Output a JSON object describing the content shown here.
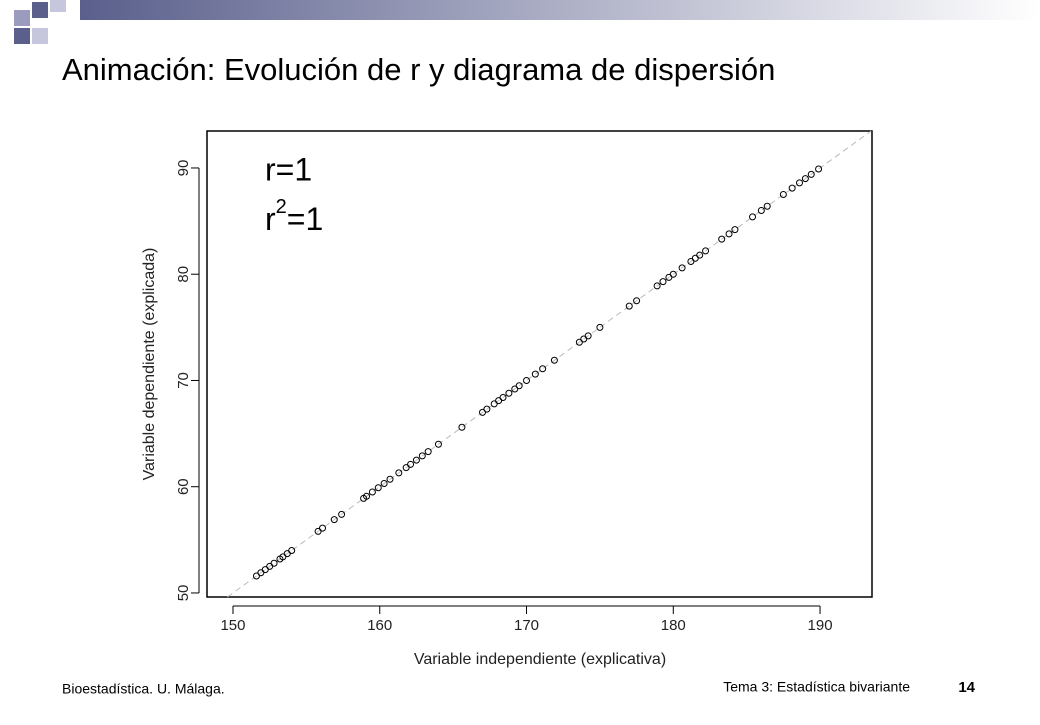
{
  "header": {
    "title": "Animación: Evolución de r y diagrama de dispersión"
  },
  "chart_data": {
    "type": "scatter",
    "xlabel": "Variable independiente (explicativa)",
    "ylabel": "Variable dependiente (explicada)",
    "annotations": [
      {
        "text": "r=1"
      },
      {
        "text": "r",
        "sup": "2",
        "after": "=1"
      }
    ],
    "reference_line": {
      "slope": 1,
      "intercept": -100
    },
    "xlim": [
      148.23,
      193.54
    ],
    "ylim": [
      49.62,
      93.48
    ],
    "xticks": [
      150,
      160,
      170,
      180,
      190
    ],
    "yticks": [
      50,
      60,
      70,
      80,
      90
    ],
    "color": "#000000",
    "x": [
      151.6,
      151.9,
      152.2,
      152.5,
      152.8,
      153.2,
      153.4,
      153.7,
      154.0,
      155.8,
      156.1,
      156.9,
      157.4,
      158.9,
      159.1,
      159.5,
      159.9,
      160.3,
      160.7,
      161.3,
      161.8,
      162.1,
      162.5,
      162.9,
      163.3,
      164.0,
      165.6,
      167.0,
      167.3,
      167.8,
      168.1,
      168.4,
      168.8,
      169.2,
      169.5,
      170.0,
      170.6,
      171.1,
      171.9,
      173.6,
      173.9,
      174.2,
      175.0,
      177.0,
      177.5,
      178.9,
      179.3,
      179.7,
      180.0,
      180.6,
      181.2,
      181.5,
      181.8,
      182.2,
      183.3,
      183.8,
      184.2,
      185.4,
      186.0,
      186.4,
      187.5,
      188.1,
      188.6,
      189.0,
      189.4,
      189.9
    ],
    "values": [
      51.6,
      51.9,
      52.2,
      52.5,
      52.8,
      53.2,
      53.4,
      53.7,
      54.0,
      55.8,
      56.1,
      56.9,
      57.4,
      58.9,
      59.1,
      59.5,
      59.9,
      60.3,
      60.7,
      61.3,
      61.8,
      62.1,
      62.5,
      62.9,
      63.3,
      64.0,
      65.6,
      67.0,
      67.3,
      67.8,
      68.1,
      68.4,
      68.8,
      69.2,
      69.5,
      70.0,
      70.6,
      71.1,
      71.9,
      73.6,
      73.9,
      74.2,
      75.0,
      77.0,
      77.5,
      78.9,
      79.3,
      79.7,
      80.0,
      80.6,
      81.2,
      81.5,
      81.8,
      82.2,
      83.3,
      83.8,
      84.2,
      85.4,
      86.0,
      86.4,
      87.5,
      88.1,
      88.6,
      89.0,
      89.4,
      89.9
    ]
  },
  "footer": {
    "left": "Bioestadística. U. Málaga.",
    "center": "Tema 3: Estadística bivariante",
    "page": "14"
  }
}
